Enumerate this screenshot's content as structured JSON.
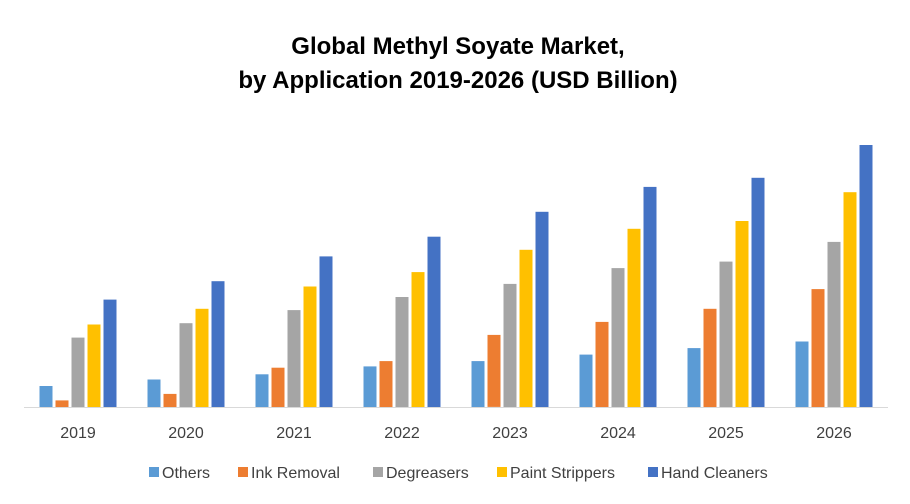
{
  "chart_data": {
    "type": "bar",
    "title": "Global Methyl Soyate Market,",
    "subtitle": "by Application 2019-2026 (USD Billion)",
    "xlabel": "",
    "ylabel": "",
    "categories": [
      "2019",
      "2020",
      "2021",
      "2022",
      "2023",
      "2024",
      "2025",
      "2026"
    ],
    "ylim": [
      0,
      100
    ],
    "grid": false,
    "legend_position": "bottom",
    "series": [
      {
        "name": "Others",
        "color": "#5B9BD5",
        "values": [
          8,
          10.5,
          12.5,
          15.5,
          17.5,
          20,
          22.5,
          25
        ]
      },
      {
        "name": "Ink Removal",
        "color": "#ED7D31",
        "values": [
          2.5,
          5,
          15,
          17.5,
          27.5,
          32.5,
          37.5,
          45
        ]
      },
      {
        "name": "Degreasers",
        "color": "#A5A5A5",
        "values": [
          26.5,
          32,
          37,
          42,
          47,
          53,
          55.5,
          63
        ]
      },
      {
        "name": "Paint Strippers",
        "color": "#FFC000",
        "values": [
          31.5,
          37.5,
          46,
          51.5,
          60,
          68,
          71,
          82
        ]
      },
      {
        "name": "Hand Cleaners",
        "color": "#4472C4",
        "values": [
          41,
          48,
          57.5,
          65,
          74.5,
          84,
          87.5,
          100
        ]
      }
    ]
  }
}
